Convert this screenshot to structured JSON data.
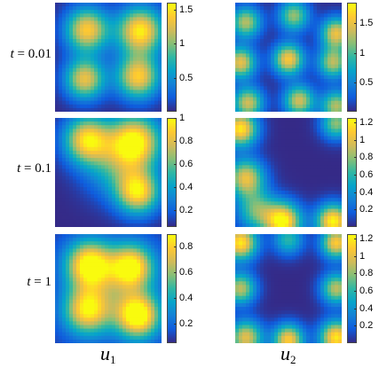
{
  "chart_data": {
    "type": "heatmap",
    "columns": [
      {
        "symbol": "u",
        "subscript": "1"
      },
      {
        "symbol": "u",
        "subscript": "2"
      }
    ],
    "rows": [
      {
        "time_prefix": "t",
        "time_value": "= 0.01"
      },
      {
        "time_prefix": "t",
        "time_value": "= 0.1"
      },
      {
        "time_prefix": "t",
        "time_value": "= 1"
      }
    ],
    "colormap": "parula",
    "colormap_stops": [
      "#352a87",
      "#0f5cdd",
      "#1481d6",
      "#06a4ca",
      "#2eb7a4",
      "#87bf77",
      "#d1bb59",
      "#fec832",
      "#f9fb0e"
    ],
    "panels": [
      {
        "row": 0,
        "col": 0,
        "cmin": 0,
        "cmax": 1.6,
        "ticks": [
          0.5,
          1,
          1.5
        ],
        "tick_labels": [
          "0.5",
          "1",
          "1.5"
        ],
        "base": 0.0,
        "blobs": [
          {
            "x": 0.3,
            "y": 0.25,
            "amp": 1.4,
            "r": 0.14
          },
          {
            "x": 0.8,
            "y": 0.26,
            "amp": 1.55,
            "r": 0.15
          },
          {
            "x": 0.28,
            "y": 0.7,
            "amp": 1.3,
            "r": 0.13
          },
          {
            "x": 0.78,
            "y": 0.68,
            "amp": 1.4,
            "r": 0.14
          }
        ]
      },
      {
        "row": 0,
        "col": 1,
        "cmin": 0,
        "cmax": 1.85,
        "ticks": [
          0.5,
          1,
          1.5
        ],
        "tick_labels": [
          "0.5",
          "1",
          "1.5"
        ],
        "base": 0.0,
        "blobs": [
          {
            "x": 0.1,
            "y": 0.18,
            "amp": 1.3,
            "r": 0.1
          },
          {
            "x": 0.55,
            "y": 0.12,
            "amp": 1.2,
            "r": 0.1
          },
          {
            "x": 0.95,
            "y": 0.28,
            "amp": 1.5,
            "r": 0.1
          },
          {
            "x": 0.05,
            "y": 0.55,
            "amp": 1.5,
            "r": 0.1
          },
          {
            "x": 0.5,
            "y": 0.52,
            "amp": 1.6,
            "r": 0.1
          },
          {
            "x": 0.92,
            "y": 0.55,
            "amp": 1.3,
            "r": 0.1
          },
          {
            "x": 0.12,
            "y": 0.92,
            "amp": 1.4,
            "r": 0.1
          },
          {
            "x": 0.6,
            "y": 0.9,
            "amp": 1.4,
            "r": 0.1
          },
          {
            "x": 0.95,
            "y": 0.95,
            "amp": 1.3,
            "r": 0.1
          }
        ]
      },
      {
        "row": 1,
        "col": 0,
        "cmin": 0.05,
        "cmax": 1.0,
        "ticks": [
          0.2,
          0.4,
          0.6,
          0.8,
          1
        ],
        "tick_labels": [
          "0.2",
          "0.4",
          "0.6",
          "0.8",
          "1"
        ],
        "base": 0.05,
        "blobs": [
          {
            "x": 0.3,
            "y": 0.2,
            "amp": 0.85,
            "r": 0.15
          },
          {
            "x": 0.75,
            "y": 0.22,
            "amp": 0.95,
            "r": 0.17
          },
          {
            "x": 0.78,
            "y": 0.68,
            "amp": 0.85,
            "r": 0.14
          },
          {
            "x": 0.55,
            "y": 0.45,
            "amp": 0.35,
            "r": 0.2
          }
        ]
      },
      {
        "row": 1,
        "col": 1,
        "cmin": 0,
        "cmax": 1.25,
        "ticks": [
          0.2,
          0.4,
          0.6,
          0.8,
          1,
          1.2
        ],
        "tick_labels": [
          "0.2",
          "0.4",
          "0.6",
          "0.8",
          "1",
          "1.2"
        ],
        "base": 0.0,
        "blobs": [
          {
            "x": 0.05,
            "y": 0.1,
            "amp": 1.2,
            "r": 0.11
          },
          {
            "x": 0.95,
            "y": 0.05,
            "amp": 0.8,
            "r": 0.1
          },
          {
            "x": 0.1,
            "y": 0.55,
            "amp": 1.0,
            "r": 0.12
          },
          {
            "x": 0.45,
            "y": 0.95,
            "amp": 1.25,
            "r": 0.12
          },
          {
            "x": 0.92,
            "y": 0.95,
            "amp": 1.25,
            "r": 0.11
          },
          {
            "x": 0.2,
            "y": 0.85,
            "amp": 0.7,
            "r": 0.13
          }
        ]
      },
      {
        "row": 2,
        "col": 0,
        "cmin": 0.05,
        "cmax": 0.9,
        "ticks": [
          0.2,
          0.4,
          0.6,
          0.8
        ],
        "tick_labels": [
          "0.2",
          "0.4",
          "0.6",
          "0.8"
        ],
        "base": 0.1,
        "blobs": [
          {
            "x": 0.32,
            "y": 0.28,
            "amp": 0.8,
            "r": 0.15
          },
          {
            "x": 0.72,
            "y": 0.3,
            "amp": 0.75,
            "r": 0.14
          },
          {
            "x": 0.3,
            "y": 0.7,
            "amp": 0.7,
            "r": 0.15
          },
          {
            "x": 0.78,
            "y": 0.75,
            "amp": 0.85,
            "r": 0.14
          },
          {
            "x": 0.55,
            "y": 0.5,
            "amp": 0.25,
            "r": 0.25
          }
        ]
      },
      {
        "row": 2,
        "col": 1,
        "cmin": 0,
        "cmax": 1.25,
        "ticks": [
          0.2,
          0.4,
          0.6,
          0.8,
          1,
          1.2
        ],
        "tick_labels": [
          "0.2",
          "0.4",
          "0.6",
          "0.8",
          "1",
          "1.2"
        ],
        "base": 0.0,
        "blobs": [
          {
            "x": 0.05,
            "y": 0.08,
            "amp": 1.2,
            "r": 0.11
          },
          {
            "x": 0.95,
            "y": 0.08,
            "amp": 1.1,
            "r": 0.1
          },
          {
            "x": 0.05,
            "y": 0.5,
            "amp": 0.9,
            "r": 0.1
          },
          {
            "x": 0.95,
            "y": 0.5,
            "amp": 0.9,
            "r": 0.1
          },
          {
            "x": 0.1,
            "y": 0.95,
            "amp": 1.0,
            "r": 0.11
          },
          {
            "x": 0.5,
            "y": 0.97,
            "amp": 1.1,
            "r": 0.1
          },
          {
            "x": 0.95,
            "y": 0.95,
            "amp": 1.2,
            "r": 0.11
          },
          {
            "x": 0.5,
            "y": 0.05,
            "amp": 0.6,
            "r": 0.1
          }
        ]
      }
    ]
  }
}
